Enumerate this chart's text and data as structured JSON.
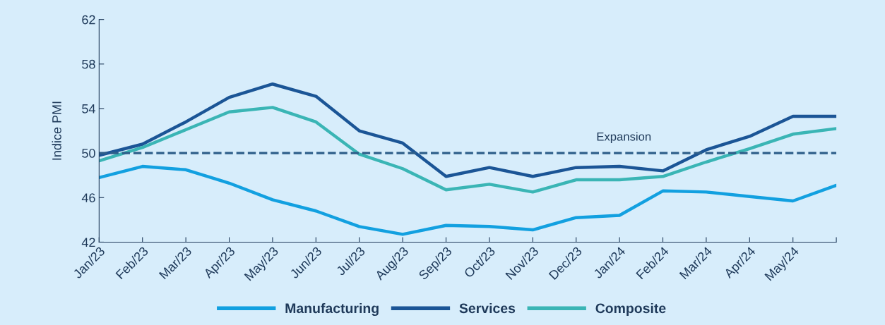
{
  "chart_data": {
    "type": "line",
    "ylabel": "Indice PMI",
    "categories": [
      "Jan/23",
      "Feb/23",
      "Mar/23",
      "Apr/23",
      "May/23",
      "Jun/23",
      "Jul/23",
      "Aug/23",
      "Sep/23",
      "Oct/23",
      "Nov/23",
      "Dec/23",
      "Jan/24",
      "Feb/24",
      "Mar/24",
      "Apr/24",
      "May/24",
      null
    ],
    "series": [
      {
        "name": "Manufacturing",
        "color": "#12a0e0",
        "values": [
          47.8,
          48.8,
          48.5,
          47.3,
          45.8,
          44.8,
          43.4,
          42.7,
          43.5,
          43.4,
          43.1,
          44.2,
          44.4,
          46.6,
          46.5,
          46.1,
          45.7,
          47.1
        ]
      },
      {
        "name": "Services",
        "color": "#1b5596",
        "values": [
          49.8,
          50.8,
          52.8,
          55.0,
          56.2,
          55.1,
          52.0,
          50.9,
          47.9,
          48.7,
          47.9,
          48.7,
          48.8,
          48.4,
          50.3,
          51.5,
          53.3,
          53.3
        ]
      },
      {
        "name": "Composite",
        "color": "#3ab5b5",
        "values": [
          49.3,
          50.5,
          52.1,
          53.7,
          54.1,
          52.8,
          49.9,
          48.6,
          46.7,
          47.2,
          46.5,
          47.6,
          47.6,
          47.9,
          49.2,
          50.4,
          51.7,
          52.2
        ]
      }
    ],
    "ylim": [
      42,
      62
    ],
    "yticks": [
      42,
      46,
      50,
      54,
      58,
      62
    ],
    "ref_lines": [
      {
        "axis": "y",
        "value": 50,
        "label": "Expansion",
        "color": "#2e5f8a",
        "line_style": "dashed"
      }
    ],
    "grid": false,
    "legend": "bottom",
    "marker": "none",
    "line_style": "solid"
  }
}
